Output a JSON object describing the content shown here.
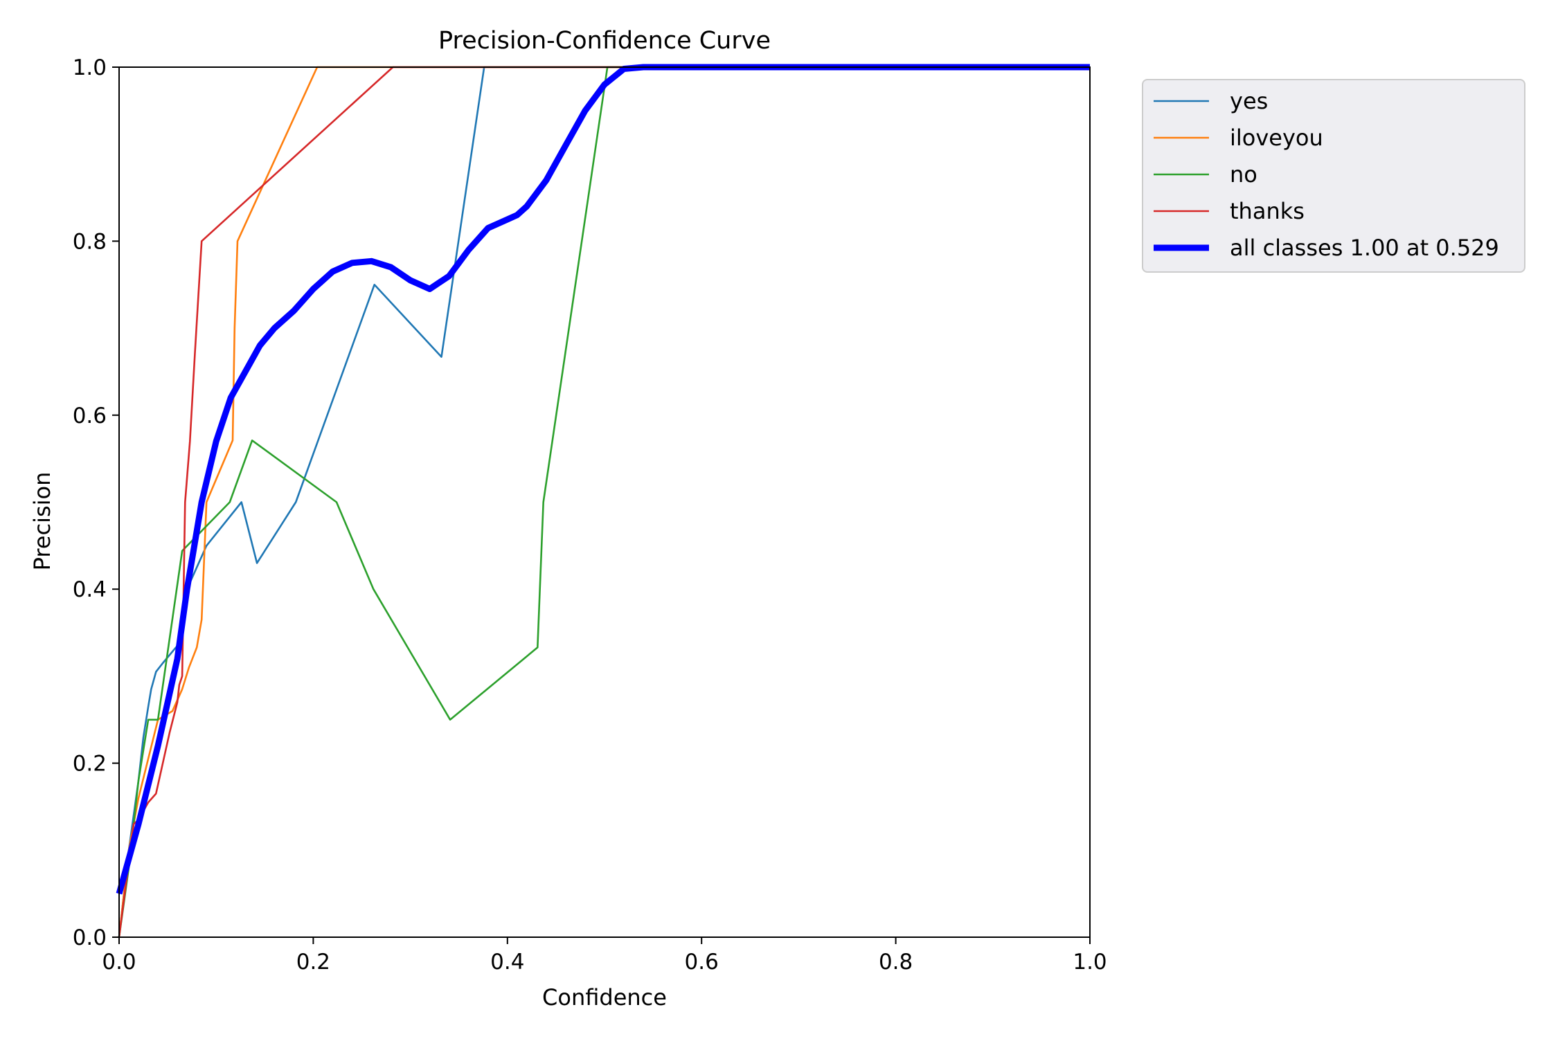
{
  "chart_data": {
    "type": "line",
    "title": "Precision-Confidence Curve",
    "xlabel": "Confidence",
    "ylabel": "Precision",
    "xlim": [
      0,
      1
    ],
    "ylim": [
      0,
      1
    ],
    "xticks": [
      "0.0",
      "0.2",
      "0.4",
      "0.6",
      "0.8",
      "1.0"
    ],
    "yticks": [
      "0.0",
      "0.2",
      "0.4",
      "0.6",
      "0.8",
      "1.0"
    ],
    "grid": false,
    "legend_position": "outside-upper-right",
    "series": [
      {
        "name": "yes",
        "color": "#1f77b4",
        "x": [
          0.0,
          0.01,
          0.02,
          0.025,
          0.03,
          0.033,
          0.038,
          0.045,
          0.06,
          0.07,
          0.09,
          0.126,
          0.142,
          0.182,
          0.263,
          0.332,
          0.376,
          1.0
        ],
        "y": [
          0.0,
          0.1,
          0.18,
          0.23,
          0.265,
          0.285,
          0.305,
          0.315,
          0.335,
          0.4,
          0.45,
          0.5,
          0.43,
          0.5,
          0.75,
          0.667,
          1.0,
          1.0
        ]
      },
      {
        "name": "iloveyou",
        "color": "#ff7f0e",
        "x": [
          0.0,
          0.01,
          0.02,
          0.04,
          0.055,
          0.065,
          0.072,
          0.08,
          0.085,
          0.09,
          0.117,
          0.119,
          0.122,
          0.204,
          1.0
        ],
        "y": [
          0.0,
          0.1,
          0.16,
          0.25,
          0.26,
          0.285,
          0.31,
          0.333,
          0.365,
          0.5,
          0.571,
          0.7,
          0.8,
          1.0,
          1.0
        ]
      },
      {
        "name": "no",
        "color": "#2ca02c",
        "x": [
          0.0,
          0.01,
          0.02,
          0.03,
          0.04,
          0.065,
          0.114,
          0.137,
          0.224,
          0.262,
          0.341,
          0.431,
          0.437,
          0.503,
          1.0
        ],
        "y": [
          0.0,
          0.08,
          0.18,
          0.25,
          0.25,
          0.444,
          0.5,
          0.571,
          0.5,
          0.4,
          0.25,
          0.333,
          0.5,
          1.0,
          1.0
        ]
      },
      {
        "name": "thanks",
        "color": "#d62728",
        "x": [
          0.0,
          0.015,
          0.02,
          0.03,
          0.038,
          0.045,
          0.052,
          0.06,
          0.062,
          0.065,
          0.068,
          0.073,
          0.078,
          0.085,
          0.282,
          1.0
        ],
        "y": [
          0.0,
          0.13,
          0.135,
          0.155,
          0.165,
          0.2,
          0.235,
          0.27,
          0.29,
          0.3,
          0.5,
          0.57,
          0.67,
          0.8,
          1.0,
          1.0
        ]
      },
      {
        "name": "all classes 1.00 at 0.529",
        "color": "#0000ff",
        "bold": true,
        "x": [
          0.0,
          0.02,
          0.04,
          0.06,
          0.07,
          0.085,
          0.1,
          0.115,
          0.13,
          0.145,
          0.16,
          0.18,
          0.2,
          0.22,
          0.24,
          0.26,
          0.28,
          0.3,
          0.32,
          0.34,
          0.36,
          0.38,
          0.4,
          0.41,
          0.42,
          0.44,
          0.46,
          0.48,
          0.5,
          0.52,
          0.54,
          1.0
        ],
        "y": [
          0.05,
          0.13,
          0.22,
          0.32,
          0.4,
          0.5,
          0.57,
          0.62,
          0.65,
          0.68,
          0.7,
          0.72,
          0.745,
          0.765,
          0.775,
          0.777,
          0.77,
          0.755,
          0.745,
          0.76,
          0.79,
          0.815,
          0.825,
          0.83,
          0.84,
          0.87,
          0.91,
          0.95,
          0.98,
          0.998,
          1.0,
          1.0
        ]
      }
    ]
  }
}
